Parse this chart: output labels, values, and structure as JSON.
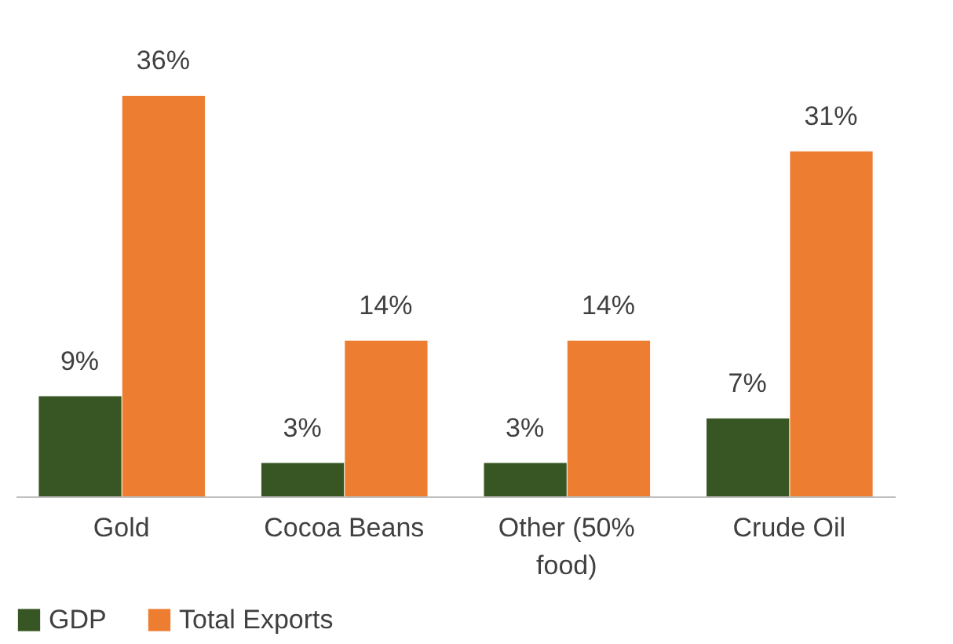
{
  "chart_data": {
    "type": "bar",
    "categories": [
      "Gold",
      "Cocoa Beans",
      "Other (50% food)",
      "Crude Oil"
    ],
    "series": [
      {
        "name": "GDP",
        "color": "#375623",
        "values": [
          9,
          3,
          3,
          7
        ],
        "value_labels": [
          "9%",
          "3%",
          "3%",
          "7%"
        ]
      },
      {
        "name": "Total Exports",
        "color": "#ed7d31",
        "values": [
          36,
          14,
          14,
          31
        ],
        "value_labels": [
          "36%",
          "14%",
          "14%",
          "31%"
        ]
      }
    ],
    "legend": "bottom",
    "grid": false
  }
}
